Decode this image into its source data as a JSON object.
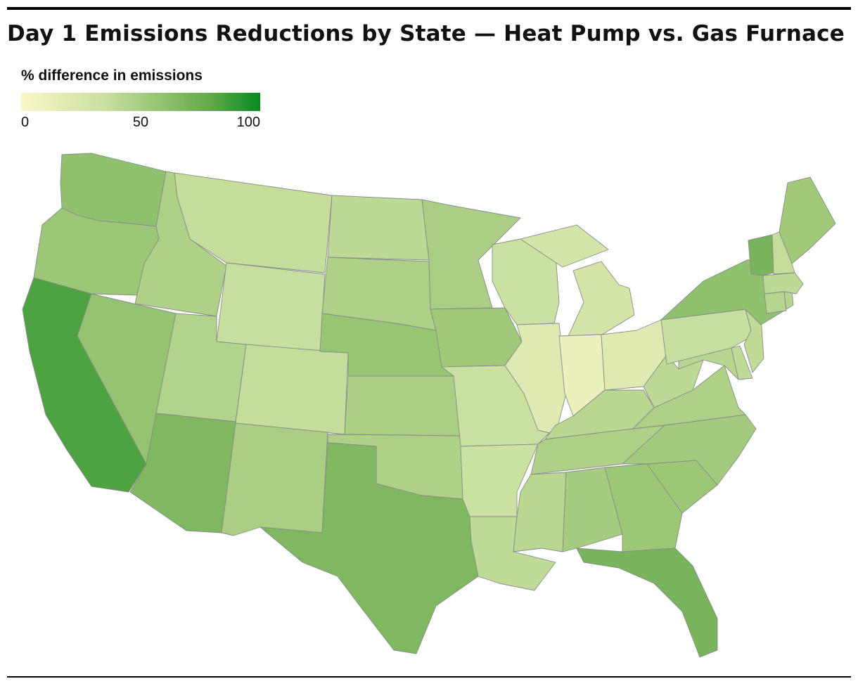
{
  "title": "Day 1 Emissions Reductions by State — Heat Pump vs. Gas Furnace",
  "legend": {
    "title": "% difference in emissions",
    "ticks": [
      "0",
      "50",
      "100"
    ],
    "range": [
      0,
      100
    ],
    "colors": [
      "#fbf7c9",
      "#c9e0a0",
      "#9cc777",
      "#5fa84a",
      "#078a20"
    ]
  },
  "states": [
    {
      "id": "WA",
      "value": 55
    },
    {
      "id": "OR",
      "value": 50
    },
    {
      "id": "CA",
      "value": 80
    },
    {
      "id": "ID",
      "value": 40
    },
    {
      "id": "NV",
      "value": 53
    },
    {
      "id": "MT",
      "value": 28
    },
    {
      "id": "WY",
      "value": 26
    },
    {
      "id": "UT",
      "value": 38
    },
    {
      "id": "AZ",
      "value": 62
    },
    {
      "id": "CO",
      "value": 28
    },
    {
      "id": "NM",
      "value": 42
    },
    {
      "id": "ND",
      "value": 32
    },
    {
      "id": "SD",
      "value": 40
    },
    {
      "id": "NE",
      "value": 52
    },
    {
      "id": "KS",
      "value": 42
    },
    {
      "id": "OK",
      "value": 40
    },
    {
      "id": "TX",
      "value": 62
    },
    {
      "id": "MN",
      "value": 42
    },
    {
      "id": "IA",
      "value": 48
    },
    {
      "id": "MO",
      "value": 25
    },
    {
      "id": "AR",
      "value": 24
    },
    {
      "id": "LA",
      "value": 30
    },
    {
      "id": "WI",
      "value": 24
    },
    {
      "id": "IL",
      "value": 14
    },
    {
      "id": "MI",
      "value": 20
    },
    {
      "id": "IN",
      "value": 8
    },
    {
      "id": "OH",
      "value": 14
    },
    {
      "id": "KY",
      "value": 34
    },
    {
      "id": "TN",
      "value": 40
    },
    {
      "id": "MS",
      "value": 34
    },
    {
      "id": "AL",
      "value": 45
    },
    {
      "id": "GA",
      "value": 50
    },
    {
      "id": "FL",
      "value": 65
    },
    {
      "id": "SC",
      "value": 50
    },
    {
      "id": "NC",
      "value": 46
    },
    {
      "id": "VA",
      "value": 40
    },
    {
      "id": "WV",
      "value": 32
    },
    {
      "id": "MD",
      "value": 35
    },
    {
      "id": "DE",
      "value": 30
    },
    {
      "id": "PA",
      "value": 26
    },
    {
      "id": "NJ",
      "value": 30
    },
    {
      "id": "NY",
      "value": 55
    },
    {
      "id": "CT",
      "value": 36
    },
    {
      "id": "RI",
      "value": 36
    },
    {
      "id": "MA",
      "value": 32
    },
    {
      "id": "VT",
      "value": 65
    },
    {
      "id": "NH",
      "value": 28
    },
    {
      "id": "ME",
      "value": 48
    }
  ]
}
